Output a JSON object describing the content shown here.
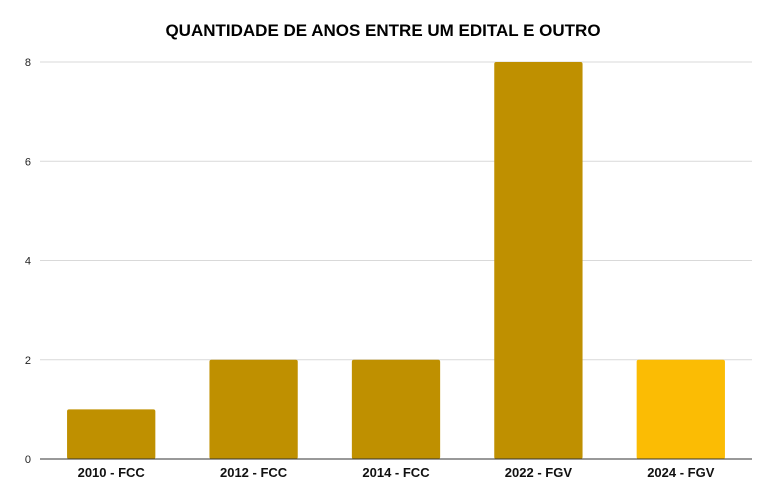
{
  "chart_data": {
    "type": "bar",
    "title": "QUANTIDADE DE ANOS ENTRE UM EDITAL E OUTRO",
    "xlabel": "",
    "ylabel": "",
    "categories": [
      "2010 - FCC",
      "2012 - FCC",
      "2014 - FCC",
      "2022 - FGV",
      "2024 - FGV"
    ],
    "values": [
      1,
      2,
      2,
      8,
      2
    ],
    "ylim": [
      0,
      8
    ],
    "yticks": [
      0,
      2,
      4,
      6,
      8
    ],
    "grid": true,
    "legend": "none",
    "bar_colors": [
      "#bf9000",
      "#bf9000",
      "#bf9000",
      "#bf9000",
      "#fbbc04"
    ]
  }
}
